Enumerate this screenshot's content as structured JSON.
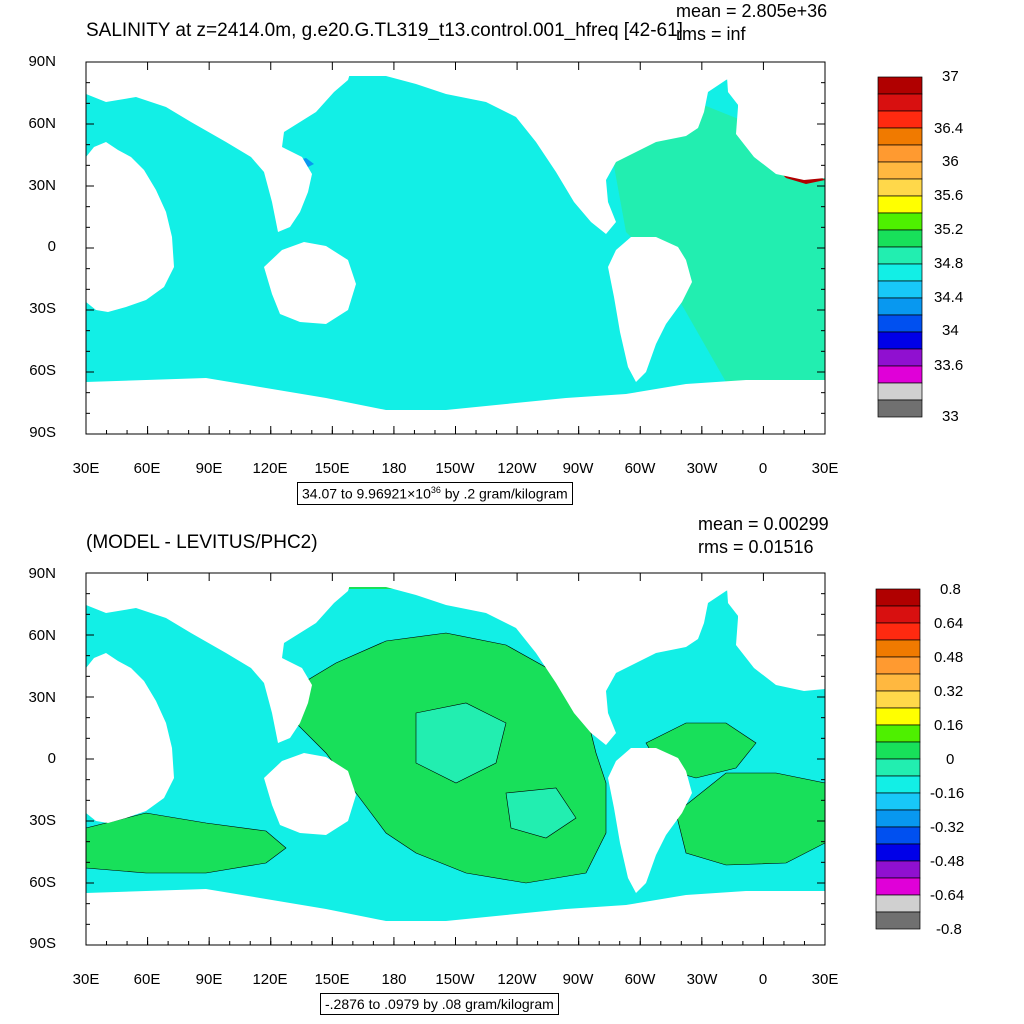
{
  "panel_top": {
    "title": "SALINITY at z=2414.0m, g.e20.G.TL319_t13.control.001_hfreq [42-61]",
    "mean_text": "mean = 2.805e+36",
    "rms_text": "rms = inf",
    "info_prefix": "34.07 to 9.96921",
    "info_times": "×10",
    "info_exp": "36",
    "info_suffix": " by .2 gram/kilogram",
    "colorbar_labels": [
      "37",
      "36.4",
      "36",
      "35.6",
      "35.2",
      "34.8",
      "34.4",
      "34",
      "33.6",
      "33"
    ],
    "colorbar_colors": [
      "#b00000",
      "#d81010",
      "#ff2a10",
      "#f07a00",
      "#ff9a30",
      "#ffb840",
      "#ffd84a",
      "#ffff00",
      "#4ef000",
      "#18e05a",
      "#22eeb0",
      "#12efe6",
      "#18c8f8",
      "#0898f0",
      "#0050f0",
      "#0000e8",
      "#9010d0",
      "#e000d8",
      "#d0d0d0",
      "#707070"
    ]
  },
  "panel_bottom": {
    "title": "(MODEL - LEVITUS/PHC2)",
    "mean_text": "mean = 0.00299",
    "rms_text": "rms = 0.01516",
    "info_text": "-.2876 to .0979 by .08 gram/kilogram",
    "colorbar_labels": [
      "0.8",
      "0.64",
      "0.48",
      "0.32",
      "0.16",
      "0",
      "-0.16",
      "-0.32",
      "-0.48",
      "-0.64",
      "-0.8"
    ],
    "colorbar_colors": [
      "#b00000",
      "#d81010",
      "#ff2a10",
      "#f07a00",
      "#ff9a30",
      "#ffb840",
      "#ffd84a",
      "#ffff00",
      "#4ef000",
      "#18e05a",
      "#22eeb0",
      "#12efe6",
      "#18c8f8",
      "#0898f0",
      "#0050f0",
      "#0000e8",
      "#9010d0",
      "#e000d8",
      "#d0d0d0",
      "#707070"
    ]
  },
  "axes": {
    "lat_labels": [
      "90N",
      "60N",
      "30N",
      "0",
      "30S",
      "60S",
      "90S"
    ],
    "lon_labels": [
      "30E",
      "60E",
      "90E",
      "120E",
      "150E",
      "180",
      "150W",
      "120W",
      "90W",
      "60W",
      "30W",
      "0",
      "30E"
    ]
  },
  "map_colors": {
    "ocean_top": "#12efe6",
    "ocean_top_atlantic": "#22eeb0",
    "ocean_bottom_green": "#18e05a",
    "ocean_bottom_cyan": "#12efe6",
    "ocean_bottom_teal": "#22eeb0",
    "patch_red": "#b00000",
    "patch_blue": "#0898f0"
  }
}
